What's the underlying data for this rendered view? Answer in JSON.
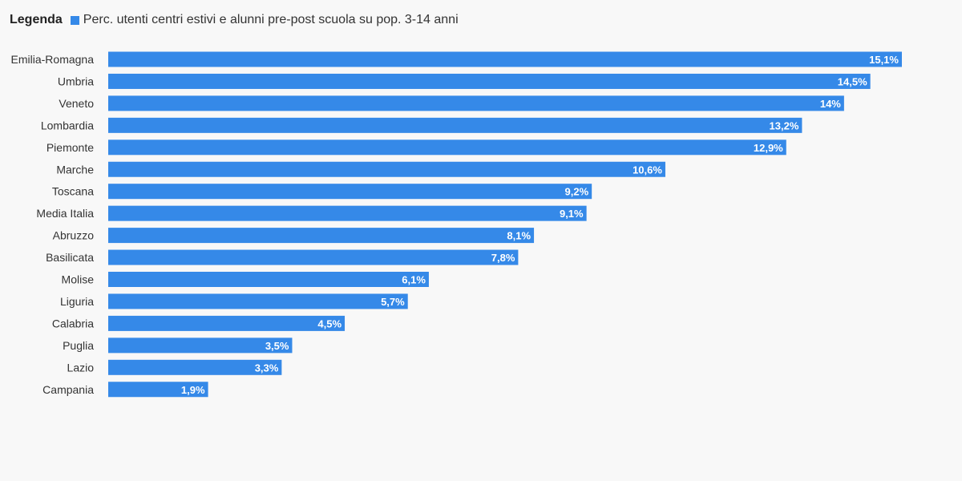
{
  "legend": {
    "title": "Legenda",
    "series_label": "Perc. utenti centri estivi e alunni pre-post scuola su pop. 3-14 anni"
  },
  "colors": {
    "bar": "#3589e8",
    "text": "#333333",
    "background": "#f8f8f8"
  },
  "chart_data": {
    "type": "bar",
    "orientation": "horizontal",
    "title": "",
    "xlabel": "",
    "ylabel": "",
    "grid": false,
    "legend_position": "top-left",
    "categories": [
      "Emilia-Romagna",
      "Umbria",
      "Veneto",
      "Lombardia",
      "Piemonte",
      "Marche",
      "Toscana",
      "Media Italia",
      "Abruzzo",
      "Basilicata",
      "Molise",
      "Liguria",
      "Calabria",
      "Puglia",
      "Lazio",
      "Campania"
    ],
    "series": [
      {
        "name": "Perc. utenti centri estivi e alunni pre-post scuola su pop. 3-14 anni",
        "values": [
          15.1,
          14.5,
          14,
          13.2,
          12.9,
          10.6,
          9.2,
          9.1,
          8.1,
          7.8,
          6.1,
          5.7,
          4.5,
          3.5,
          3.3,
          1.9
        ]
      }
    ],
    "data_labels": [
      "15,1%",
      "14,5%",
      "14%",
      "13,2%",
      "12,9%",
      "10,6%",
      "9,2%",
      "9,1%",
      "8,1%",
      "7,8%",
      "6,1%",
      "5,7%",
      "4,5%",
      "3,5%",
      "3,3%",
      "1,9%"
    ],
    "xlim": [
      0,
      15.1
    ]
  }
}
